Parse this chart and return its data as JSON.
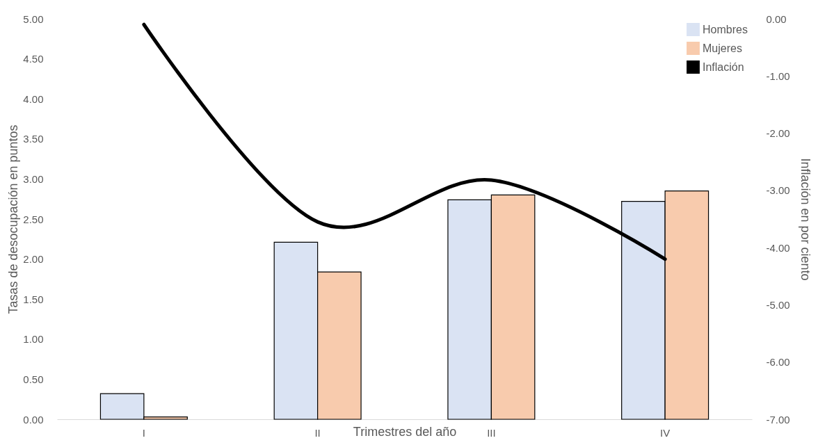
{
  "chart_data": {
    "type": "bar",
    "xlabel": "Trimestres del año",
    "ylabel": "Tasas de desocupación en puntos",
    "y2label": "Inflación en por ciento",
    "categories": [
      "I",
      "II",
      "III",
      "IV"
    ],
    "series": [
      {
        "name": "Hombres",
        "color": "#dae3f3",
        "values": [
          0.32,
          2.21,
          2.74,
          2.72
        ]
      },
      {
        "name": "Mujeres",
        "color": "#f8cbad",
        "values": [
          0.03,
          1.84,
          2.8,
          2.85
        ]
      },
      {
        "name": "Inflación",
        "type": "line",
        "axis": "y2",
        "color": "#000000",
        "values": [
          -0.1,
          -3.55,
          -2.82,
          -4.2
        ]
      }
    ],
    "ylim": [
      0,
      5
    ],
    "yticks": [
      {
        "value": 0,
        "label": "0.00"
      },
      {
        "value": 0.5,
        "label": "0.50"
      },
      {
        "value": 1,
        "label": "1.00"
      },
      {
        "value": 1.5,
        "label": "1.50"
      },
      {
        "value": 2,
        "label": "2.00"
      },
      {
        "value": 2.5,
        "label": "2.50"
      },
      {
        "value": 3,
        "label": "3.00"
      },
      {
        "value": 3.5,
        "label": "3.50"
      },
      {
        "value": 4,
        "label": "4.00"
      },
      {
        "value": 4.5,
        "label": "4.50"
      },
      {
        "value": 5,
        "label": "5.00"
      }
    ],
    "y2lim": [
      -7,
      0
    ],
    "y2ticks": [
      {
        "value": -7,
        "label": "-7.00"
      },
      {
        "value": -6,
        "label": "-6.00"
      },
      {
        "value": -5,
        "label": "-5.00"
      },
      {
        "value": -4,
        "label": "-4.00"
      },
      {
        "value": -3,
        "label": "-3.00"
      },
      {
        "value": -2,
        "label": "-2.00"
      },
      {
        "value": -1,
        "label": "-1.00"
      },
      {
        "value": 0,
        "label": "0.00"
      }
    ],
    "grid": false,
    "legend": "top right",
    "marker": "none",
    "line_style": "solid"
  }
}
